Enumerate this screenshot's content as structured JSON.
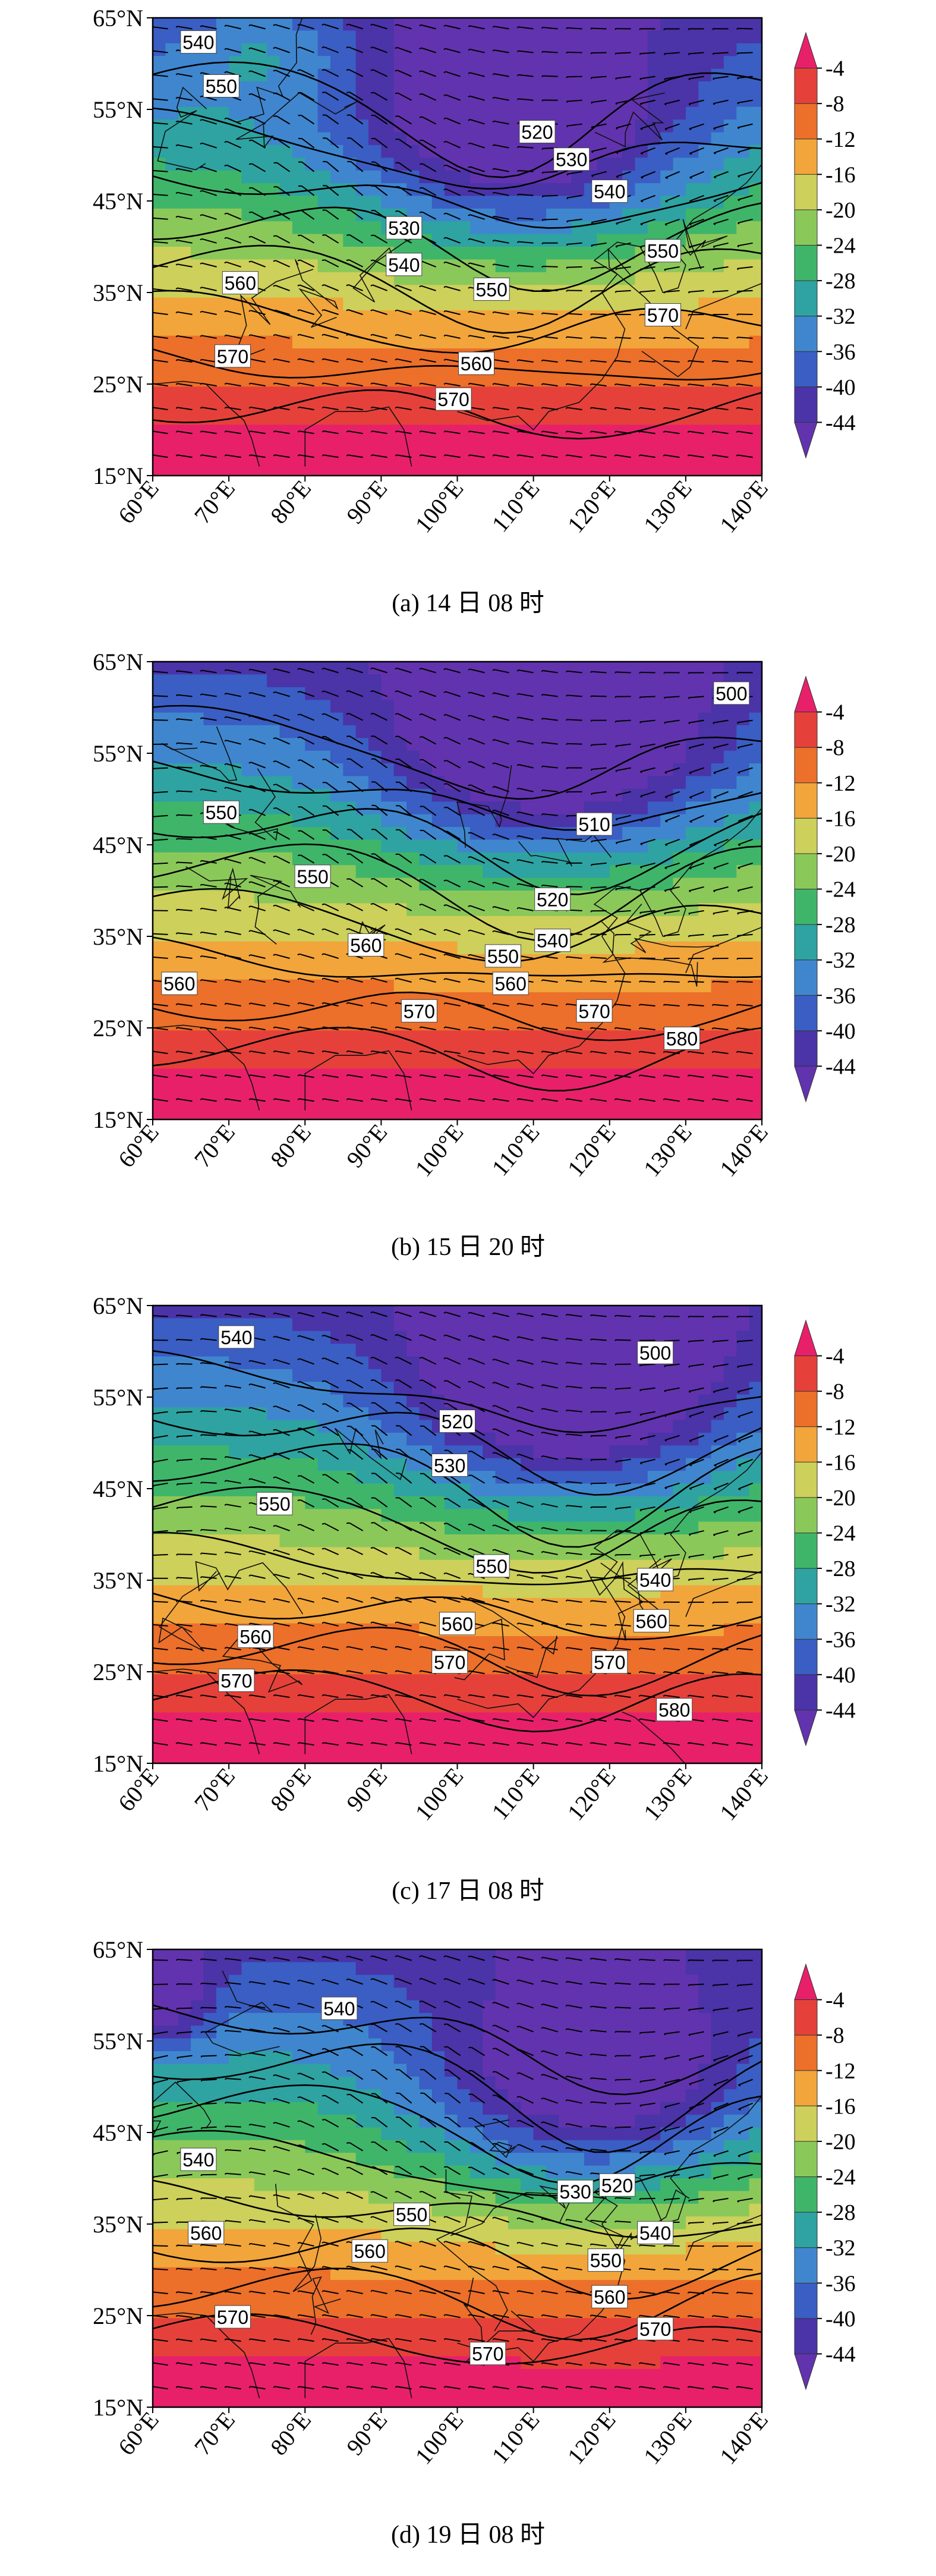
{
  "map": {
    "x_tick_labels": [
      "60°E",
      "70°E",
      "80°E",
      "90°E",
      "100°E",
      "110°E",
      "120°E",
      "130°E",
      "140°E"
    ],
    "y_tick_labels": [
      "65°N",
      "55°N",
      "45°N",
      "35°N",
      "25°N",
      "15°N"
    ],
    "lon_range": [
      60,
      140
    ],
    "lat_range": [
      15,
      65
    ],
    "colorbar": {
      "labels": [
        "-4",
        "-8",
        "-12",
        "-16",
        "-20",
        "-24",
        "-28",
        "-32",
        "-36",
        "-40",
        "-44"
      ],
      "colors": [
        "#e8206a",
        "#e5413a",
        "#ec6f2a",
        "#f2a53a",
        "#cdd05a",
        "#8bc85a",
        "#3fb56a",
        "#2ea3a2",
        "#3f86cf",
        "#3a5ec3",
        "#4b33a8",
        "#6233ae"
      ]
    }
  },
  "panels": [
    {
      "caption": "(a) 14 日 08 时",
      "contour_labels": [
        {
          "text": "540",
          "lon": 66.0,
          "lat": 62.3
        },
        {
          "text": "550",
          "lon": 69.0,
          "lat": 57.5
        },
        {
          "text": "520",
          "lon": 110.5,
          "lat": 52.5
        },
        {
          "text": "530",
          "lon": 115.0,
          "lat": 49.5
        },
        {
          "text": "540",
          "lon": 120.0,
          "lat": 46.0
        },
        {
          "text": "530",
          "lon": 93.0,
          "lat": 42.0
        },
        {
          "text": "540",
          "lon": 93.0,
          "lat": 38.0
        },
        {
          "text": "550",
          "lon": 127.0,
          "lat": 39.5
        },
        {
          "text": "560",
          "lon": 71.5,
          "lat": 36.0
        },
        {
          "text": "550",
          "lon": 104.5,
          "lat": 35.3
        },
        {
          "text": "570",
          "lon": 127.0,
          "lat": 32.5
        },
        {
          "text": "570",
          "lon": 70.5,
          "lat": 28.0
        },
        {
          "text": "560",
          "lon": 102.5,
          "lat": 27.2
        },
        {
          "text": "570",
          "lon": 99.5,
          "lat": 23.3
        }
      ]
    },
    {
      "caption": "(b) 15 日 20 时",
      "contour_labels": [
        {
          "text": "500",
          "lon": 136.0,
          "lat": 61.5
        },
        {
          "text": "550",
          "lon": 69.0,
          "lat": 48.5
        },
        {
          "text": "510",
          "lon": 118.0,
          "lat": 47.2
        },
        {
          "text": "550",
          "lon": 81.0,
          "lat": 41.5
        },
        {
          "text": "520",
          "lon": 112.5,
          "lat": 39.0
        },
        {
          "text": "560",
          "lon": 88.0,
          "lat": 34.0
        },
        {
          "text": "540",
          "lon": 112.5,
          "lat": 34.5
        },
        {
          "text": "550",
          "lon": 106.0,
          "lat": 32.8
        },
        {
          "text": "560",
          "lon": 107.0,
          "lat": 29.8
        },
        {
          "text": "560",
          "lon": 63.5,
          "lat": 29.8
        },
        {
          "text": "570",
          "lon": 95.0,
          "lat": 26.8
        },
        {
          "text": "570",
          "lon": 118.0,
          "lat": 26.8
        },
        {
          "text": "580",
          "lon": 129.5,
          "lat": 23.8
        }
      ]
    },
    {
      "caption": "(c) 17 日 08 时",
      "contour_labels": [
        {
          "text": "540",
          "lon": 71.0,
          "lat": 61.5
        },
        {
          "text": "500",
          "lon": 126.0,
          "lat": 59.8
        },
        {
          "text": "520",
          "lon": 100.0,
          "lat": 52.3
        },
        {
          "text": "530",
          "lon": 99.0,
          "lat": 47.5
        },
        {
          "text": "550",
          "lon": 76.0,
          "lat": 43.3
        },
        {
          "text": "550",
          "lon": 104.5,
          "lat": 36.5
        },
        {
          "text": "540",
          "lon": 126.0,
          "lat": 35.0
        },
        {
          "text": "560",
          "lon": 73.5,
          "lat": 28.8
        },
        {
          "text": "560",
          "lon": 100.0,
          "lat": 30.2
        },
        {
          "text": "560",
          "lon": 125.5,
          "lat": 30.5
        },
        {
          "text": "570",
          "lon": 71.0,
          "lat": 24.0
        },
        {
          "text": "570",
          "lon": 99.0,
          "lat": 26.0
        },
        {
          "text": "570",
          "lon": 120.0,
          "lat": 26.0
        },
        {
          "text": "580",
          "lon": 128.5,
          "lat": 20.8
        }
      ]
    },
    {
      "caption": "(d) 19 日 08 时",
      "contour_labels": [
        {
          "text": "540",
          "lon": 84.5,
          "lat": 58.5
        },
        {
          "text": "540",
          "lon": 66.0,
          "lat": 42.0
        },
        {
          "text": "530",
          "lon": 115.5,
          "lat": 38.5
        },
        {
          "text": "520",
          "lon": 121.0,
          "lat": 39.2
        },
        {
          "text": "560",
          "lon": 67.0,
          "lat": 34.0
        },
        {
          "text": "550",
          "lon": 94.0,
          "lat": 36.0
        },
        {
          "text": "540",
          "lon": 126.0,
          "lat": 34.0
        },
        {
          "text": "560",
          "lon": 88.5,
          "lat": 32.0
        },
        {
          "text": "550",
          "lon": 119.5,
          "lat": 31.0
        },
        {
          "text": "560",
          "lon": 120.0,
          "lat": 27.0
        },
        {
          "text": "570",
          "lon": 70.5,
          "lat": 24.8
        },
        {
          "text": "570",
          "lon": 126.0,
          "lat": 23.5
        },
        {
          "text": "570",
          "lon": 104.0,
          "lat": 20.8
        }
      ]
    }
  ]
}
